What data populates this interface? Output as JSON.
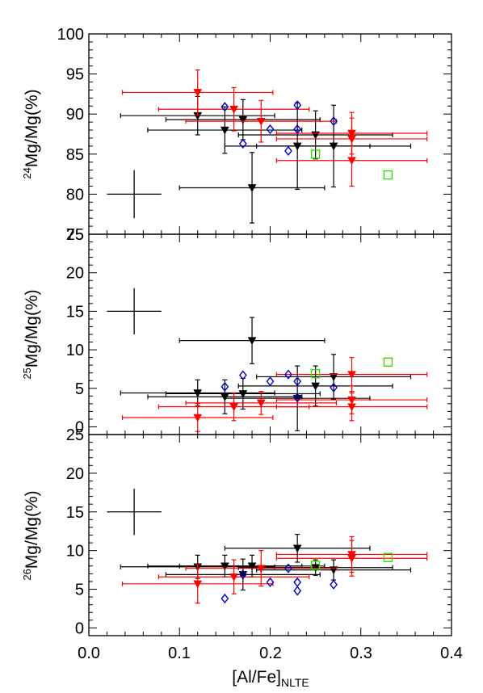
{
  "figure": {
    "xlabel_main": "[Al/Fe]",
    "xlabel_sub": "NLTE",
    "x_ticks": [
      "0.0",
      "0.1",
      "0.2",
      "0.3",
      "0.4"
    ]
  },
  "colors": {
    "black_series": "#000000",
    "red_series": "#ff0000",
    "blue_series": "#0000cc",
    "green_series": "#33dd00"
  },
  "chart_data": [
    {
      "type": "scatter",
      "panel": "top",
      "ylabel_sup": "24",
      "ylabel_main": "Mg/Mg(%)",
      "xlim": [
        0.0,
        0.4
      ],
      "ylim": [
        75,
        100
      ],
      "y_ticks": [
        "75",
        "80",
        "85",
        "90",
        "95",
        "100"
      ],
      "typical_error": {
        "x": 0.05,
        "y": 80,
        "xerr": 0.03,
        "yerr": 3
      },
      "series": [
        {
          "marker": "filled-down-triangle",
          "color": "black",
          "points": [
            {
              "x": 0.12,
              "y": 89.8,
              "xerr": 0.085,
              "yerr": 2.4
            },
            {
              "x": 0.15,
              "y": 88.0,
              "xerr": 0.085,
              "yerr": 2.9
            },
            {
              "x": 0.17,
              "y": 89.3,
              "xerr": 0.085,
              "yerr": 2.5
            },
            {
              "x": 0.18,
              "y": 80.8,
              "xerr": 0.08,
              "yerr": 4.4
            },
            {
              "x": 0.23,
              "y": 86.0,
              "xerr": 0.08,
              "yerr": 5.4
            },
            {
              "x": 0.25,
              "y": 87.4,
              "xerr": 0.085,
              "yerr": 3.0
            },
            {
              "x": 0.27,
              "y": 86.0,
              "xerr": 0.085,
              "yerr": 5.1
            }
          ]
        },
        {
          "marker": "filled-down-triangle",
          "color": "red",
          "points": [
            {
              "x": 0.12,
              "y": 92.7,
              "xerr": 0.083,
              "yerr": 2.8
            },
            {
              "x": 0.16,
              "y": 90.6,
              "xerr": 0.083,
              "yerr": 2.7
            },
            {
              "x": 0.19,
              "y": 89.1,
              "xerr": 0.083,
              "yerr": 2.6
            },
            {
              "x": 0.29,
              "y": 87.6,
              "xerr": 0.083,
              "yerr": 2.6
            },
            {
              "x": 0.29,
              "y": 86.9,
              "xerr": 0.083,
              "yerr": 2.6
            },
            {
              "x": 0.29,
              "y": 84.2,
              "xerr": 0.083,
              "yerr": 3.2
            }
          ]
        },
        {
          "marker": "open-diamond",
          "color": "blue",
          "points": [
            {
              "x": 0.15,
              "y": 90.9
            },
            {
              "x": 0.17,
              "y": 86.3
            },
            {
              "x": 0.2,
              "y": 88.1
            },
            {
              "x": 0.22,
              "y": 85.4
            },
            {
              "x": 0.23,
              "y": 91.1
            },
            {
              "x": 0.23,
              "y": 88.1
            },
            {
              "x": 0.27,
              "y": 89.1
            }
          ]
        },
        {
          "marker": "open-square",
          "color": "green",
          "points": [
            {
              "x": 0.25,
              "y": 85.0
            },
            {
              "x": 0.33,
              "y": 82.4
            }
          ]
        }
      ]
    },
    {
      "type": "scatter",
      "panel": "middle",
      "ylabel_sup": "25",
      "ylabel_main": "Mg/Mg(%)",
      "xlim": [
        0.0,
        0.4
      ],
      "ylim": [
        -1,
        25
      ],
      "y_ticks": [
        "0",
        "5",
        "10",
        "15",
        "20",
        "25"
      ],
      "typical_error": {
        "x": 0.05,
        "y": 15,
        "xerr": 0.03,
        "yerr": 3
      },
      "series": [
        {
          "marker": "filled-down-triangle",
          "color": "black",
          "points": [
            {
              "x": 0.12,
              "y": 4.4,
              "xerr": 0.085,
              "yerr": 1.7
            },
            {
              "x": 0.15,
              "y": 3.9,
              "xerr": 0.085,
              "yerr": 2.2
            },
            {
              "x": 0.17,
              "y": 4.3,
              "xerr": 0.085,
              "yerr": 2.0
            },
            {
              "x": 0.18,
              "y": 11.2,
              "xerr": 0.08,
              "yerr": 3.0
            },
            {
              "x": 0.23,
              "y": 3.7,
              "xerr": 0.08,
              "yerr": 4.2
            },
            {
              "x": 0.25,
              "y": 5.3,
              "xerr": 0.085,
              "yerr": 2.6
            },
            {
              "x": 0.27,
              "y": 6.5,
              "xerr": 0.085,
              "yerr": 2.9
            }
          ]
        },
        {
          "marker": "filled-down-triangle",
          "color": "red",
          "points": [
            {
              "x": 0.12,
              "y": 1.2,
              "xerr": 0.083,
              "yerr": 1.8
            },
            {
              "x": 0.16,
              "y": 2.6,
              "xerr": 0.083,
              "yerr": 1.8
            },
            {
              "x": 0.19,
              "y": 3.1,
              "xerr": 0.083,
              "yerr": 1.5
            },
            {
              "x": 0.29,
              "y": 6.8,
              "xerr": 0.083,
              "yerr": 2.2
            },
            {
              "x": 0.29,
              "y": 3.5,
              "xerr": 0.083,
              "yerr": 1.8
            },
            {
              "x": 0.29,
              "y": 2.6,
              "xerr": 0.083,
              "yerr": 1.8
            }
          ]
        },
        {
          "marker": "open-diamond",
          "color": "blue",
          "points": [
            {
              "x": 0.15,
              "y": 5.2
            },
            {
              "x": 0.17,
              "y": 6.7
            },
            {
              "x": 0.2,
              "y": 5.9
            },
            {
              "x": 0.22,
              "y": 6.8
            },
            {
              "x": 0.23,
              "y": 5.9
            },
            {
              "x": 0.23,
              "y": 3.8
            },
            {
              "x": 0.27,
              "y": 5.1
            }
          ]
        },
        {
          "marker": "open-square",
          "color": "green",
          "points": [
            {
              "x": 0.25,
              "y": 6.9
            },
            {
              "x": 0.33,
              "y": 8.4
            }
          ]
        }
      ]
    },
    {
      "type": "scatter",
      "panel": "bottom",
      "ylabel_sup": "26",
      "ylabel_main": "Mg/Mg(%)",
      "xlim": [
        0.0,
        0.4
      ],
      "ylim": [
        -1,
        25
      ],
      "y_ticks": [
        "0",
        "5",
        "10",
        "15",
        "20",
        "25"
      ],
      "typical_error": {
        "x": 0.05,
        "y": 15,
        "xerr": 0.03,
        "yerr": 3
      },
      "series": [
        {
          "marker": "filled-down-triangle",
          "color": "black",
          "points": [
            {
              "x": 0.12,
              "y": 7.9,
              "xerr": 0.085,
              "yerr": 1.5
            },
            {
              "x": 0.15,
              "y": 8.0,
              "xerr": 0.085,
              "yerr": 1.4
            },
            {
              "x": 0.17,
              "y": 6.9,
              "xerr": 0.085,
              "yerr": 2.0
            },
            {
              "x": 0.18,
              "y": 8.0,
              "xerr": 0.08,
              "yerr": 1.4
            },
            {
              "x": 0.23,
              "y": 10.3,
              "xerr": 0.08,
              "yerr": 1.8
            },
            {
              "x": 0.25,
              "y": 7.8,
              "xerr": 0.085,
              "yerr": 1.0
            },
            {
              "x": 0.27,
              "y": 7.5,
              "xerr": 0.085,
              "yerr": 1.3
            }
          ]
        },
        {
          "marker": "filled-down-triangle",
          "color": "red",
          "points": [
            {
              "x": 0.12,
              "y": 5.7,
              "xerr": 0.083,
              "yerr": 2.5
            },
            {
              "x": 0.16,
              "y": 6.6,
              "xerr": 0.083,
              "yerr": 2.2
            },
            {
              "x": 0.19,
              "y": 7.7,
              "xerr": 0.083,
              "yerr": 2.3
            },
            {
              "x": 0.29,
              "y": 9.5,
              "xerr": 0.083,
              "yerr": 2.3
            },
            {
              "x": 0.29,
              "y": 9.0,
              "xerr": 0.083,
              "yerr": 2.3
            }
          ]
        },
        {
          "marker": "open-diamond",
          "color": "blue",
          "points": [
            {
              "x": 0.15,
              "y": 3.8
            },
            {
              "x": 0.17,
              "y": 6.9
            },
            {
              "x": 0.2,
              "y": 5.9
            },
            {
              "x": 0.22,
              "y": 7.7
            },
            {
              "x": 0.23,
              "y": 5.9
            },
            {
              "x": 0.23,
              "y": 4.8
            },
            {
              "x": 0.27,
              "y": 5.6
            }
          ]
        },
        {
          "marker": "open-square",
          "color": "green",
          "points": [
            {
              "x": 0.25,
              "y": 8.1
            },
            {
              "x": 0.33,
              "y": 9.1
            }
          ]
        }
      ]
    }
  ]
}
